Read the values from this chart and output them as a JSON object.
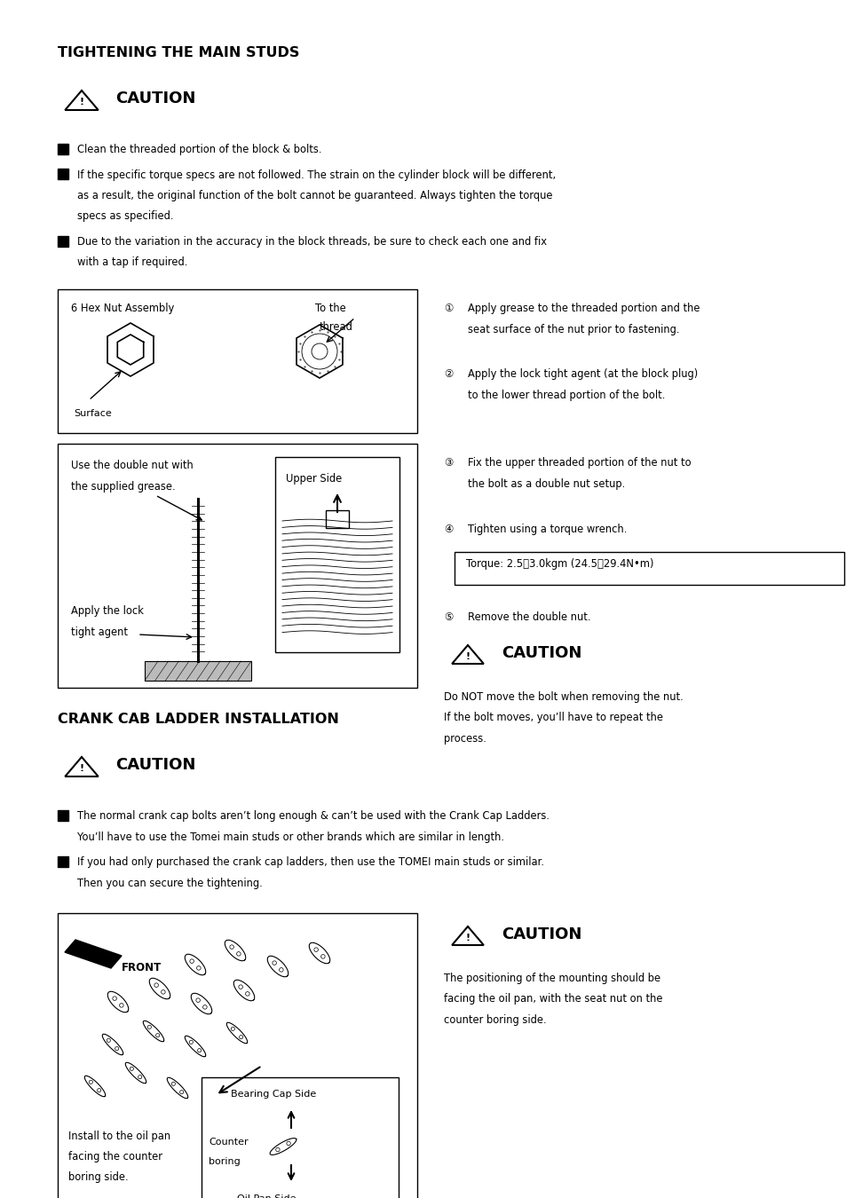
{
  "bg_color": "#ffffff",
  "page_width": 9.54,
  "page_height": 13.5,
  "title1": "TIGHTENING THE MAIN STUDS",
  "title2": "CRANK CAB LADDER INSTALLATION",
  "caution_label": "CAUTION",
  "bullet1_items": [
    "Clean the threaded portion of the block & bolts.",
    "If the specific torque specs are not followed. The strain on the cylinder block will be different,\nas a result, the original function of the bolt cannot be guaranteed. Always tighten the torque\nspecs as specified.",
    "Due to the variation in the accuracy in the block threads, be sure to check each one and fix\nwith a tap if required."
  ],
  "numbered_items": [
    "Apply grease to the threaded portion and the\nseat surface of the nut prior to fastening.",
    "Apply the lock tight agent (at the block plug)\nto the lower thread portion of the bolt.",
    "Fix the upper threaded portion of the nut to\nthe bolt as a double nut setup.",
    "Tighten using a torque wrench.",
    "Remove the double nut."
  ],
  "torque_text": "Torque: 2.5～3.0kgm (24.5～29.4N•m)",
  "caution2_text": "Do NOT move the bolt when removing the nut.\nIf the bolt moves, you’ll have to repeat the\nprocess.",
  "bullet2_items": [
    "The normal crank cap bolts aren’t long enough & can’t be used with the Crank Cap Ladders.\nYou’ll have to use the Tomei main studs or other brands which are similar in length.",
    "If you had only purchased the crank cap ladders, then use the TOMEI main studs or similar.\nThen you can secure the tightening."
  ],
  "caution3_text": "The positioning of the mounting should be\nfacing the oil pan, with the seat nut on the\ncounter boring side."
}
